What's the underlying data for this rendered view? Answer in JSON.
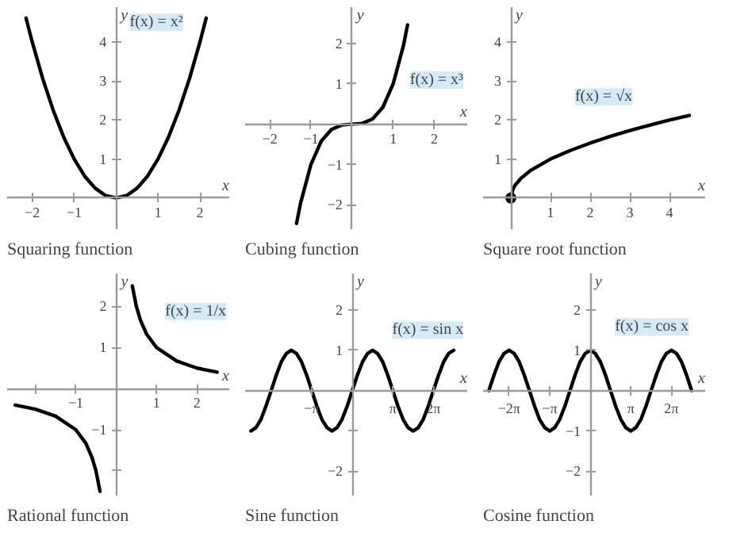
{
  "chart_data": [
    {
      "type": "line",
      "title": "Squaring function",
      "xlabel": "x",
      "ylabel": "y",
      "xlim": [
        -2.6,
        2.7
      ],
      "ylim": [
        -0.8,
        4.9
      ],
      "xticks": [
        -2,
        -1,
        1,
        2
      ],
      "yticks": [
        1,
        2,
        3,
        4
      ],
      "series": [
        {
          "color": "#000000",
          "x": [
            -2.15,
            -2,
            -1.75,
            -1.5,
            -1.25,
            -1,
            -0.75,
            -0.5,
            -0.25,
            0,
            0.25,
            0.5,
            0.75,
            1,
            1.25,
            1.5,
            1.75,
            2,
            2.15
          ],
          "values": [
            4.62,
            4,
            3.06,
            2.25,
            1.56,
            1,
            0.56,
            0.25,
            0.06,
            0,
            0.06,
            0.25,
            0.56,
            1,
            1.56,
            2.25,
            3.06,
            4,
            4.62
          ]
        }
      ],
      "annotations": [
        {
          "text": "f(x) = x²",
          "x": 1.9,
          "y": 3.61
        }
      ]
    },
    {
      "type": "line",
      "title": "Cubing function",
      "xlabel": "x",
      "ylabel": "y",
      "xlim": [
        -2.6,
        2.8
      ],
      "ylim": [
        -2.6,
        2.9
      ],
      "xticks": [
        -2,
        -1,
        1,
        2
      ],
      "yticks": [
        -2,
        -1,
        1,
        2
      ],
      "series": [
        {
          "color": "#000000",
          "x": [
            -1.35,
            -1.25,
            -1,
            -0.75,
            -0.5,
            -0.25,
            0,
            0.25,
            0.5,
            0.75,
            1,
            1.25,
            1.35
          ],
          "values": [
            -2.46,
            -1.95,
            -1,
            -0.42,
            -0.13,
            -0.02,
            0,
            0.02,
            0.13,
            0.42,
            1,
            1.95,
            2.46
          ]
        }
      ],
      "annotations": [
        {
          "text": "f(x) = x³",
          "x": 1.1,
          "y": 1.33
        }
      ]
    },
    {
      "type": "line",
      "title": "Square root function",
      "xlabel": "x",
      "ylabel": "y",
      "xlim": [
        -0.7,
        4.9
      ],
      "ylim": [
        -0.8,
        4.9
      ],
      "xticks": [
        1,
        2,
        3,
        4
      ],
      "yticks": [
        1,
        2,
        3,
        4
      ],
      "series": [
        {
          "color": "#000000",
          "x": [
            0,
            0.05,
            0.1,
            0.25,
            0.5,
            1,
            1.5,
            2,
            2.5,
            3,
            3.5,
            4,
            4.5
          ],
          "values": [
            0,
            0.22,
            0.32,
            0.5,
            0.71,
            1,
            1.22,
            1.41,
            1.58,
            1.73,
            1.87,
            2,
            2.12
          ]
        },
        {
          "type": "scatter",
          "color": "#000000",
          "x": [
            0
          ],
          "values": [
            0
          ]
        }
      ],
      "annotations": [
        {
          "text": "f(x) = √x",
          "x": 2.9,
          "y": 1.7
        }
      ]
    },
    {
      "type": "line",
      "title": "Rational function",
      "xlabel": "x",
      "ylabel": "y",
      "xlim": [
        -2.7,
        2.8
      ],
      "ylim": [
        -2.6,
        2.8
      ],
      "xticks": [
        {
          "value": -2,
          "label": null
        },
        -1,
        1,
        2
      ],
      "yticks": [
        {
          "value": -2,
          "label": null
        },
        -1,
        1,
        2
      ],
      "series": [
        {
          "color": "#000000",
          "x": [
            -2.5,
            -2,
            -1.5,
            -1,
            -0.75,
            -0.6,
            -0.5,
            -0.4,
            0,
            0.4,
            0.5,
            0.6,
            0.75,
            1,
            1.5,
            2,
            2.5
          ],
          "values": [
            -0.4,
            -0.5,
            -0.67,
            -1,
            -1.33,
            -1.67,
            -2,
            -2.5,
            null,
            2.5,
            2,
            1.67,
            1.33,
            1,
            0.67,
            0.5,
            0.4
          ]
        }
      ],
      "annotations": [
        {
          "text": "f(x) = 1/x",
          "x": 0.9,
          "y": 1.11
        }
      ]
    },
    {
      "type": "line",
      "title": "Sine function",
      "xlabel": "x",
      "ylabel": "y",
      "xlim": [
        -8.3,
        8.9
      ],
      "ylim": [
        -2.6,
        2.9
      ],
      "xticks": [
        {
          "value": -3.1416,
          "label": "−π"
        },
        {
          "value": 3.1416,
          "label": "π"
        },
        {
          "value": 6.2832,
          "label": "2π"
        }
      ],
      "yticks": [
        -2,
        {
          "value": -1,
          "label": null
        },
        1,
        2
      ],
      "series": [
        {
          "color": "#000000",
          "x": [
            -7.85,
            -7.46,
            -7.07,
            -6.68,
            -6.28,
            -5.89,
            -5.5,
            -5.11,
            -4.71,
            -4.32,
            -3.93,
            -3.53,
            -3.14,
            -2.75,
            -2.36,
            -1.96,
            -1.57,
            -1.18,
            -0.79,
            -0.39,
            0,
            0.39,
            0.79,
            1.18,
            1.57,
            1.96,
            2.36,
            2.75,
            3.14,
            3.53,
            3.93,
            4.32,
            4.71,
            5.11,
            5.5,
            5.89,
            6.28,
            6.68,
            7.07,
            7.46,
            7.85
          ],
          "values": [
            -1,
            -0.92,
            -0.71,
            -0.38,
            0,
            0.38,
            0.71,
            0.92,
            1,
            0.92,
            0.71,
            0.38,
            0,
            -0.38,
            -0.71,
            -0.92,
            -1,
            -0.92,
            -0.71,
            -0.38,
            0,
            0.38,
            0.71,
            0.92,
            1,
            0.92,
            0.71,
            0.38,
            0,
            -0.38,
            -0.71,
            -0.92,
            -1,
            -0.92,
            -0.71,
            -0.38,
            0,
            0.38,
            0.71,
            0.92,
            1
          ]
        }
      ],
      "annotations": [
        {
          "text": "f(x) = sin x",
          "x": 2.36,
          "y": 0.71
        }
      ]
    },
    {
      "type": "line",
      "title": "Cosine function",
      "xlabel": "x",
      "ylabel": "y",
      "xlim": [
        -8.3,
        8.9
      ],
      "ylim": [
        -2.6,
        2.9
      ],
      "xticks": [
        {
          "value": -6.2832,
          "label": "−2π"
        },
        {
          "value": -3.1416,
          "label": "−π"
        },
        {
          "value": 3.1416,
          "label": "π"
        },
        {
          "value": 6.2832,
          "label": "2π"
        }
      ],
      "yticks": [
        -2,
        -1,
        1,
        2
      ],
      "series": [
        {
          "color": "#000000",
          "x": [
            -7.85,
            -7.46,
            -7.07,
            -6.68,
            -6.28,
            -5.89,
            -5.5,
            -5.11,
            -4.71,
            -4.32,
            -3.93,
            -3.53,
            -3.14,
            -2.75,
            -2.36,
            -1.96,
            -1.57,
            -1.18,
            -0.79,
            -0.39,
            0,
            0.39,
            0.79,
            1.18,
            1.57,
            1.96,
            2.36,
            2.75,
            3.14,
            3.53,
            3.93,
            4.32,
            4.71,
            5.11,
            5.5,
            5.89,
            6.28,
            6.68,
            7.07,
            7.46,
            7.85
          ],
          "values": [
            0,
            0.38,
            0.71,
            0.92,
            1,
            0.92,
            0.71,
            0.38,
            0,
            -0.38,
            -0.71,
            -0.92,
            -1,
            -0.92,
            -0.71,
            -0.38,
            0,
            0.38,
            0.71,
            0.92,
            1,
            0.92,
            0.71,
            0.38,
            0,
            -0.38,
            -0.71,
            -0.92,
            -1,
            -0.92,
            -0.71,
            -0.38,
            0,
            0.38,
            0.71,
            0.92,
            1,
            0.92,
            0.71,
            0.38,
            0
          ]
        }
      ],
      "annotations": [
        {
          "text": "f(x) = cos x",
          "x": 5.5,
          "y": 0.71
        }
      ]
    }
  ]
}
